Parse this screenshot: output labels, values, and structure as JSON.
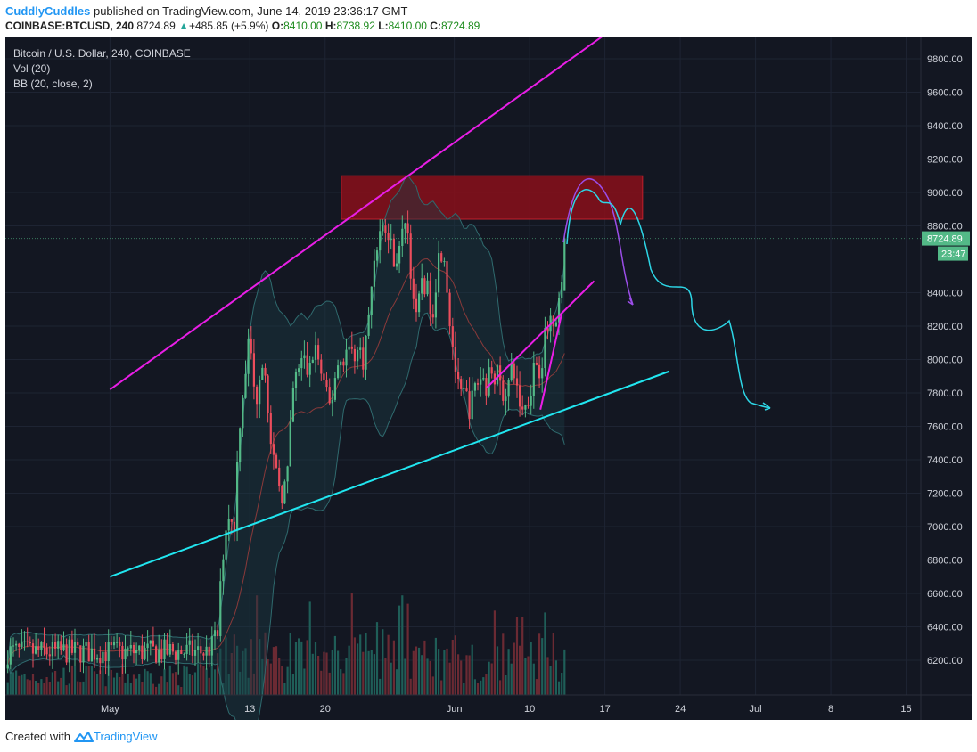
{
  "header": {
    "author": "CuddlyCuddles",
    "published_text": "published on TradingView.com, June 14, 2019 23:36:17 GMT",
    "symbol_line": "COINBASE:BTCUSD, 240",
    "last_price": "8724.89",
    "change": "+485.85 (+5.9%)",
    "o_label": "O:",
    "o_value": "8410.00",
    "h_label": "H:",
    "h_value": "8738.92",
    "l_label": "L:",
    "l_value": "8410.00",
    "c_label": "C:",
    "c_value": "8724.89"
  },
  "legend": {
    "title": "Bitcoin / U.S. Dollar, 240, COINBASE",
    "vol": "Vol (20)",
    "bb": "BB (20, close, 2)"
  },
  "footer": {
    "created_with": "Created with",
    "brand": "TradingView"
  },
  "colors": {
    "background": "#131722",
    "grid": "#1e2433",
    "up": "#53b987",
    "down": "#eb4d5c",
    "magenta_line": "#e91ee6",
    "cyan_line": "#21e6f0",
    "resistance_zone": "#8a0f1a",
    "bb_band": "#2f6a6e",
    "bb_basis": "#8a3a3a",
    "last_price_badge": "#53b987"
  },
  "chart_data": {
    "type": "candlestick",
    "title": "Bitcoin / U.S. Dollar, 240, COINBASE",
    "ylim": [
      6050,
      9950
    ],
    "yticks": [
      "9800.00",
      "9600.00",
      "9400.00",
      "9200.00",
      "9000.00",
      "8800.00",
      "8400.00",
      "8200.00",
      "8000.00",
      "7800.00",
      "7600.00",
      "7400.00",
      "7200.00",
      "7000.00",
      "6800.00",
      "6600.00",
      "6400.00",
      "6200.00"
    ],
    "ytick_values": [
      9800,
      9600,
      9400,
      9200,
      9000,
      8800,
      8400,
      8200,
      8000,
      7800,
      7600,
      7400,
      7200,
      7000,
      6800,
      6600,
      6400,
      6200
    ],
    "xticks": [
      "May",
      "13",
      "20",
      "Jun",
      "10",
      "17",
      "24",
      "Jul",
      "8",
      "15"
    ],
    "xtick_days": [
      -9,
      4,
      11,
      23,
      30,
      37,
      44,
      51,
      58,
      65
    ],
    "last_price": 8724.89,
    "last_price_label": "8724.89",
    "countdown": "23:47",
    "candle_anchors": [
      [
        0,
        6250
      ],
      [
        1,
        6350
      ],
      [
        1.5,
        6850
      ],
      [
        2,
        7100
      ],
      [
        2.5,
        6950
      ],
      [
        3,
        7600
      ],
      [
        3.5,
        7900
      ],
      [
        4,
        8150
      ],
      [
        4.5,
        7700
      ],
      [
        5,
        8000
      ],
      [
        5.5,
        7950
      ],
      [
        6,
        7400
      ],
      [
        6.5,
        7300
      ],
      [
        7,
        7200
      ],
      [
        7.5,
        7300
      ],
      [
        8,
        7800
      ],
      [
        8.5,
        7950
      ],
      [
        9,
        8000
      ],
      [
        9.5,
        7900
      ],
      [
        10,
        8100
      ],
      [
        10.5,
        7950
      ],
      [
        11,
        7800
      ],
      [
        11.5,
        7700
      ],
      [
        12,
        7950
      ],
      [
        13,
        8050
      ],
      [
        14,
        8050
      ],
      [
        14.5,
        8000
      ],
      [
        15,
        8200
      ],
      [
        15.5,
        8600
      ],
      [
        16,
        8750
      ],
      [
        16.5,
        8800
      ],
      [
        17,
        8700
      ],
      [
        17.5,
        8600
      ],
      [
        18,
        8650
      ],
      [
        18.5,
        8900
      ],
      [
        19,
        8500
      ],
      [
        19.5,
        8200
      ],
      [
        20,
        8500
      ],
      [
        20.5,
        8400
      ],
      [
        21,
        8300
      ],
      [
        21.5,
        8600
      ],
      [
        22,
        8700
      ],
      [
        22.5,
        8300
      ],
      [
        23,
        8000
      ],
      [
        23.5,
        7750
      ],
      [
        24,
        7800
      ],
      [
        24.5,
        7700
      ],
      [
        25,
        7850
      ],
      [
        25.5,
        7900
      ],
      [
        26,
        7850
      ],
      [
        26.5,
        7950
      ],
      [
        27,
        7900
      ],
      [
        27.5,
        7800
      ],
      [
        28,
        7850
      ],
      [
        28.5,
        7950
      ],
      [
        29,
        7750
      ],
      [
        29.5,
        7700
      ],
      [
        30,
        7800
      ],
      [
        30.5,
        8000
      ],
      [
        31,
        7950
      ],
      [
        31.5,
        8150
      ],
      [
        32,
        8250
      ],
      [
        32.5,
        8300
      ],
      [
        33,
        8410
      ],
      [
        33.25,
        8724.89
      ]
    ],
    "volume_max": 5000,
    "annotations": [
      {
        "type": "trendline",
        "color": "magenta",
        "from": [
          -9,
          7820
        ],
        "to": [
          41,
          10130
        ]
      },
      {
        "type": "trendline",
        "color": "cyan",
        "from": [
          -9,
          6700
        ],
        "to": [
          43,
          7930
        ]
      },
      {
        "type": "trendline",
        "color": "magenta",
        "from": [
          26,
          7830
        ],
        "to": [
          36,
          8470
        ]
      },
      {
        "type": "trendline",
        "color": "magenta",
        "from": [
          31,
          7700
        ],
        "to": [
          33,
          8280
        ]
      },
      {
        "type": "rectangle",
        "color": "darkred",
        "from": [
          12.5,
          8840
        ],
        "to": [
          40.5,
          9100
        ]
      }
    ]
  }
}
